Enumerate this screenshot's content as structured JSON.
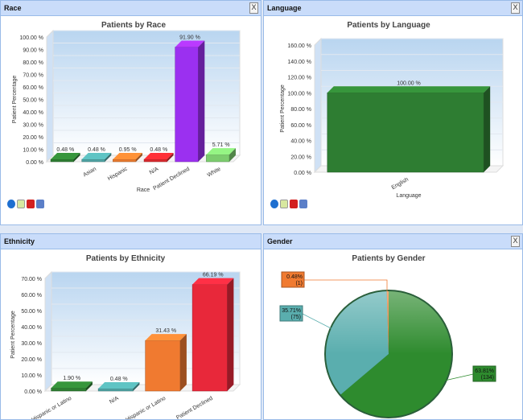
{
  "panels": {
    "race": "Race",
    "language": "Language",
    "ethnicity": "Ethnicity",
    "gender": "Gender"
  },
  "close_label": "X",
  "chart_data": [
    {
      "id": "race",
      "type": "bar",
      "title": "Patients by Race",
      "xlabel": "Race",
      "ylabel": "Patient Percentage",
      "ylim": [
        0,
        100
      ],
      "ystep": 10,
      "categories": [
        "",
        "Asian",
        "Hispanic",
        "N/A",
        "Patient Declined",
        "White"
      ],
      "values": [
        0.48,
        0.48,
        0.95,
        0.48,
        91.9,
        5.71
      ],
      "labels": [
        "0.48 %",
        "0.48 %",
        "0.95 %",
        "0.48 %",
        "91.90 %",
        "5.71 %"
      ],
      "colors": [
        "#2e7d32",
        "#4fa3a3",
        "#e87a2e",
        "#d9282e",
        "#9b30f0",
        "#7ccc6e"
      ]
    },
    {
      "id": "language",
      "type": "bar",
      "title": "Patients by Language",
      "xlabel": "Language",
      "ylabel": "Patient Percentage",
      "ylim": [
        0,
        160
      ],
      "ystep": 20,
      "categories": [
        "English"
      ],
      "values": [
        100.0
      ],
      "labels": [
        "100.00 %"
      ],
      "colors": [
        "#2e7d32"
      ]
    },
    {
      "id": "ethnicity",
      "type": "bar",
      "title": "Patients by Ethnicity",
      "xlabel": "",
      "ylabel": "Patient Percentage",
      "ylim": [
        0,
        70
      ],
      "ystep": 10,
      "categories": [
        "Hispanic or Latino",
        "N/A",
        "Not Hispanic or Latino",
        "Patient Declined"
      ],
      "values": [
        1.9,
        0.48,
        31.43,
        66.19
      ],
      "labels": [
        "1.90 %",
        "0.48 %",
        "31.43 %",
        "66.19 %"
      ],
      "colors": [
        "#2e7d32",
        "#4fa3a3",
        "#f07a30",
        "#e8283a"
      ]
    },
    {
      "id": "gender",
      "type": "pie",
      "title": "Patients by Gender",
      "slices": [
        {
          "percent": 63.81,
          "count": 134,
          "label": "63.81%",
          "count_label": "(134)",
          "color": "#2e8b2e"
        },
        {
          "percent": 35.71,
          "count": 75,
          "label": "35.71%",
          "count_label": "(75)",
          "color": "#5aaeae"
        },
        {
          "percent": 0.48,
          "count": 1,
          "label": "0.48%",
          "count_label": "(1)",
          "color": "#f07a30"
        }
      ]
    }
  ]
}
